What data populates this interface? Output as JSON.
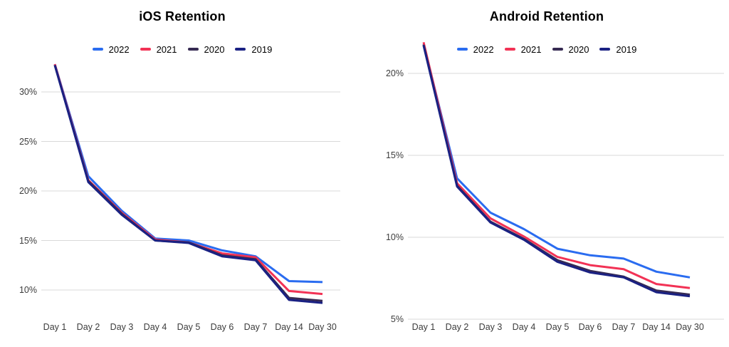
{
  "page": {
    "background": "#ffffff"
  },
  "colors": {
    "grid": "#d9d9d9",
    "axis_text": "#3c3c3c",
    "title_text": "#000000"
  },
  "chart_data": [
    {
      "type": "line",
      "title": "iOS Retention",
      "legend_position": "top",
      "grid": true,
      "categories": [
        "Day 1",
        "Day 2",
        "Day 3",
        "Day 4",
        "Day 5",
        "Day 6",
        "Day 7",
        "Day 14",
        "Day 30"
      ],
      "y_ticks": [
        30,
        25,
        20,
        15,
        10
      ],
      "y_tick_labels": [
        "30%",
        "25%",
        "20%",
        "15%",
        "10%"
      ],
      "ylim": [
        8,
        33
      ],
      "series": [
        {
          "name": "2022",
          "color": "#2a6cf0",
          "values": [
            32.8,
            21.5,
            18.0,
            15.2,
            15.0,
            14.0,
            13.4,
            10.9,
            10.8
          ]
        },
        {
          "name": "2021",
          "color": "#f23255",
          "values": [
            32.8,
            21.1,
            17.8,
            15.1,
            14.8,
            13.7,
            13.3,
            9.9,
            9.6
          ]
        },
        {
          "name": "2020",
          "color": "#362a52",
          "values": [
            32.7,
            21.0,
            17.7,
            15.0,
            14.8,
            13.5,
            13.1,
            9.2,
            8.9
          ]
        },
        {
          "name": "2019",
          "color": "#1a2183",
          "values": [
            32.7,
            20.9,
            17.6,
            15.0,
            14.75,
            13.4,
            13.0,
            9.0,
            8.7
          ]
        }
      ]
    },
    {
      "type": "line",
      "title": "Android Retention",
      "legend_position": "top",
      "grid": true,
      "categories": [
        "Day 1",
        "Day 2",
        "Day 3",
        "Day 4",
        "Day 5",
        "Day 6",
        "Day 7",
        "Day 14",
        "Day 30"
      ],
      "y_ticks": [
        20,
        15,
        10,
        5
      ],
      "y_tick_labels": [
        "20%",
        "15%",
        "10%",
        "5%"
      ],
      "ylim": [
        5,
        22
      ],
      "series": [
        {
          "name": "2022",
          "color": "#2a6cf0",
          "values": [
            21.8,
            13.6,
            11.5,
            10.5,
            9.3,
            8.9,
            8.7,
            7.9,
            7.55
          ]
        },
        {
          "name": "2021",
          "color": "#f23255",
          "values": [
            21.9,
            13.3,
            11.15,
            10.05,
            8.8,
            8.3,
            8.05,
            7.15,
            6.9
          ]
        },
        {
          "name": "2020",
          "color": "#362a52",
          "values": [
            21.75,
            13.15,
            10.95,
            9.9,
            8.6,
            7.95,
            7.6,
            6.75,
            6.5
          ]
        },
        {
          "name": "2019",
          "color": "#1a2183",
          "values": [
            21.7,
            13.1,
            10.9,
            9.85,
            8.5,
            7.85,
            7.55,
            6.65,
            6.4
          ]
        }
      ]
    }
  ]
}
